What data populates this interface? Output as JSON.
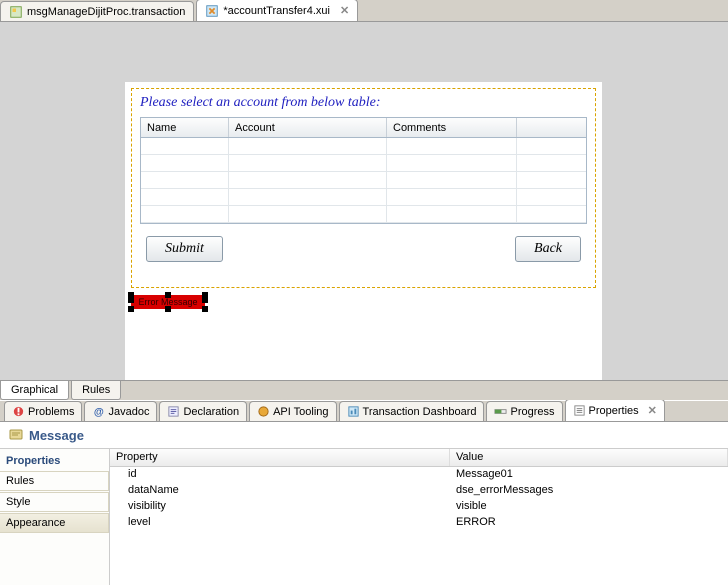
{
  "topTabs": [
    {
      "label": "msgManageDijitProc.transaction",
      "active": false
    },
    {
      "label": "*accountTransfer4.xui",
      "active": true
    }
  ],
  "subTabs": [
    {
      "label": "Graphical",
      "active": true
    },
    {
      "label": "Rules",
      "active": false
    }
  ],
  "form": {
    "prompt": "Please select an account from below table:",
    "columns": [
      {
        "label": "Name",
        "width": 88
      },
      {
        "label": "Account",
        "width": 158
      },
      {
        "label": "Comments",
        "width": 130
      },
      {
        "label": "",
        "width": 24
      }
    ],
    "rowCount": 5,
    "submitLabel": "Submit",
    "backLabel": "Back",
    "selectedWidgetText": "Error Message",
    "colors": {
      "promptColor": "#2020c0",
      "dashedBorder": "#d9a300",
      "errorBg": "#d80000"
    }
  },
  "viewTabs": [
    {
      "label": "Problems",
      "active": false
    },
    {
      "label": "Javadoc",
      "active": false
    },
    {
      "label": "Declaration",
      "active": false
    },
    {
      "label": "API Tooling",
      "active": false
    },
    {
      "label": "Transaction Dashboard",
      "active": false
    },
    {
      "label": "Progress",
      "active": false
    },
    {
      "label": "Properties",
      "active": true
    }
  ],
  "propsPanel": {
    "header": "Message",
    "sideHeader": "Properties",
    "sideItems": [
      "Rules",
      "Style",
      "Appearance"
    ],
    "columns": {
      "property": "Property",
      "value": "Value"
    },
    "rows": [
      {
        "p": "id",
        "v": "Message01"
      },
      {
        "p": "dataName",
        "v": "dse_errorMessages"
      },
      {
        "p": "visibility",
        "v": "visible"
      },
      {
        "p": "level",
        "v": "ERROR"
      }
    ],
    "propColWidth": 340
  }
}
